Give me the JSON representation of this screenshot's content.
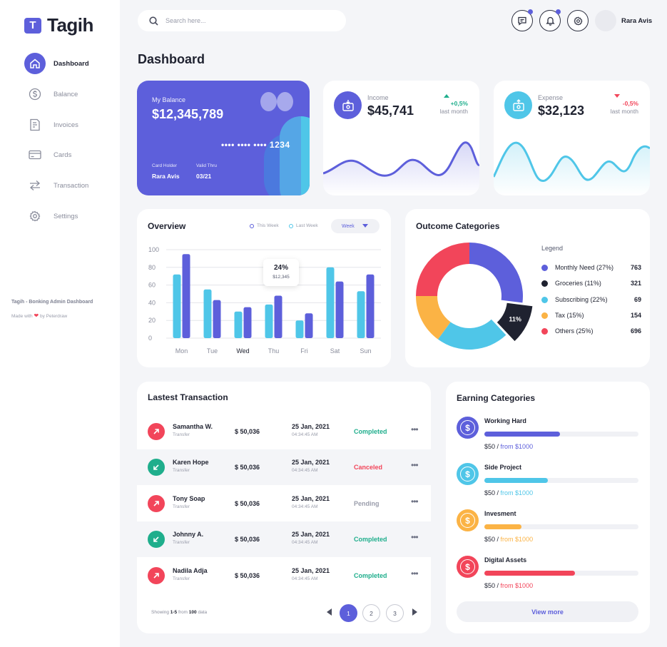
{
  "brand": {
    "mark": "T",
    "name": "Tagih"
  },
  "nav": [
    {
      "label": "Dashboard",
      "icon": "home-icon",
      "active": true
    },
    {
      "label": "Balance",
      "icon": "dollar-icon",
      "active": false
    },
    {
      "label": "Invoices",
      "icon": "invoice-icon",
      "active": false
    },
    {
      "label": "Cards",
      "icon": "card-icon",
      "active": false
    },
    {
      "label": "Transaction",
      "icon": "transfer-icon",
      "active": false
    },
    {
      "label": "Settings",
      "icon": "gear-icon",
      "active": false
    }
  ],
  "footer": {
    "title": "Tagih - Bonking Admin Dashboard",
    "made_prefix": "Made with",
    "made_suffix": "by Peterdraw"
  },
  "search": {
    "placeholder": "Search here..."
  },
  "user": {
    "name": "Rara Avis"
  },
  "page": {
    "title": "Dashboard"
  },
  "balance_card": {
    "label": "My Balance",
    "amount": "$12,345,789",
    "number": "•••• •••• •••• 1234",
    "holder_label": "Card Holder",
    "holder": "Rara Avis",
    "valid_label": "Valid Thru",
    "valid": "03/21"
  },
  "income": {
    "label": "Income",
    "amount": "$45,741",
    "change": "+0,5%",
    "sub": "last month",
    "color": "#1fae8c"
  },
  "expense": {
    "label": "Expense",
    "amount": "$32,123",
    "change": "-0,5%",
    "sub": "last month",
    "color": "#f2455a"
  },
  "overview": {
    "title": "Overview",
    "legend_this": "This Week",
    "legend_last": "Last Week",
    "select": "Week",
    "tooltip_pct": "24%",
    "tooltip_val": "$12,345"
  },
  "chart_data": {
    "type": "bar",
    "categories": [
      "Mon",
      "Tue",
      "Wed",
      "Thu",
      "Fri",
      "Sat",
      "Sun"
    ],
    "series": [
      {
        "name": "This Week",
        "values": [
          72,
          55,
          30,
          38,
          20,
          80,
          53
        ],
        "color": "#4fc6e8"
      },
      {
        "name": "Last Week",
        "values": [
          95,
          43,
          35,
          48,
          28,
          64,
          72
        ],
        "color": "#5d5fdb"
      }
    ],
    "ylim": [
      0,
      100
    ],
    "yticks": [
      0,
      20,
      40,
      60,
      80,
      100
    ],
    "active_category": "Wed"
  },
  "outcome": {
    "title": "Outcome Categories",
    "legend_title": "Legend",
    "highlight_label": "11%",
    "items": [
      {
        "label": "Monthly Need (27%)",
        "value": "763",
        "pct": 27,
        "color": "#5d5fdb"
      },
      {
        "label": "Groceries (11%)",
        "value": "321",
        "pct": 11,
        "color": "#1f2230"
      },
      {
        "label": "Subscribing (22%)",
        "value": "69",
        "pct": 22,
        "color": "#4fc6e8"
      },
      {
        "label": "Tax (15%)",
        "value": "154",
        "pct": 15,
        "color": "#fbb345"
      },
      {
        "label": "Others (25%)",
        "value": "696",
        "pct": 25,
        "color": "#f2455a"
      }
    ]
  },
  "transactions": {
    "title": "Lastest Transaction",
    "rows": [
      {
        "name": "Samantha W.",
        "type": "Transfer",
        "amount": "$ 50,036",
        "date": "25 Jan, 2021",
        "time": "04:34:45 AM",
        "status": "Completed",
        "status_color": "#1fae8c",
        "direction": "out"
      },
      {
        "name": "Karen Hope",
        "type": "Transfer",
        "amount": "$ 50,036",
        "date": "25 Jan, 2021",
        "time": "04:34:45 AM",
        "status": "Canceled",
        "status_color": "#f2455a",
        "direction": "in"
      },
      {
        "name": "Tony Soap",
        "type": "Transfer",
        "amount": "$ 50,036",
        "date": "25 Jan, 2021",
        "time": "04:34:45 AM",
        "status": "Pending",
        "status_color": "#9a9dab",
        "direction": "out"
      },
      {
        "name": "Johnny A.",
        "type": "Transfer",
        "amount": "$ 50,036",
        "date": "25 Jan, 2021",
        "time": "04:34:45 AM",
        "status": "Completed",
        "status_color": "#1fae8c",
        "direction": "in"
      },
      {
        "name": "Nadila Adja",
        "type": "Transfer",
        "amount": "$ 50,036",
        "date": "25 Jan, 2021",
        "time": "04:34:45 AM",
        "status": "Completed",
        "status_color": "#1fae8c",
        "direction": "out"
      }
    ],
    "showing_prefix": "Showing",
    "showing_range": "1-5",
    "showing_mid": "from",
    "showing_total": "100",
    "showing_suffix": "data",
    "pages": [
      "1",
      "2",
      "3"
    ]
  },
  "earning": {
    "title": "Earning Categories",
    "items": [
      {
        "name": "Working Hard",
        "amount": "$50",
        "from": "from $1000",
        "progress": 0.49,
        "color": "#5d5fdb"
      },
      {
        "name": "Side Project",
        "amount": "$50",
        "from": "from $1000",
        "progress": 0.41,
        "color": "#4fc6e8"
      },
      {
        "name": "Invesment",
        "amount": "$50",
        "from": "from $1000",
        "progress": 0.24,
        "color": "#fbb345"
      },
      {
        "name": "Digital Assets",
        "amount": "$50",
        "from": "from $1000",
        "progress": 0.59,
        "color": "#f2455a"
      }
    ],
    "view_more": "View more"
  }
}
